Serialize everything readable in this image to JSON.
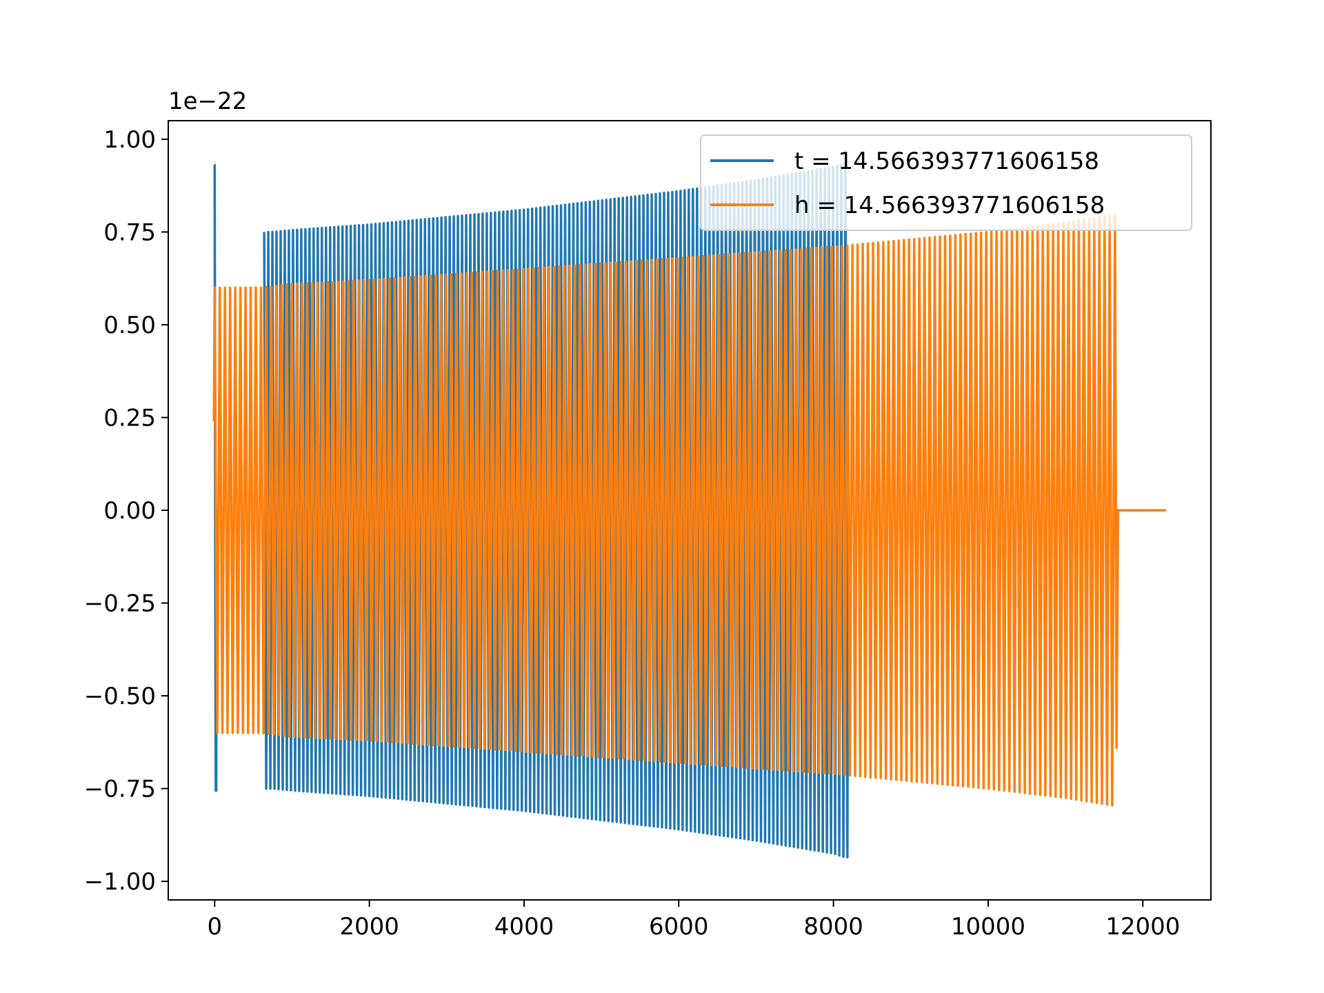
{
  "chart_data": {
    "type": "line",
    "title": "",
    "xlabel": "",
    "ylabel": "",
    "y_offset_text": "1e−22",
    "xlim": [
      -600,
      12880
    ],
    "ylim": [
      -1.05,
      1.05
    ],
    "x_ticks": [
      0,
      2000,
      4000,
      6000,
      8000,
      10000,
      12000
    ],
    "x_tick_labels": [
      "0",
      "2000",
      "4000",
      "6000",
      "8000",
      "10000",
      "12000"
    ],
    "y_ticks": [
      1.0,
      0.75,
      0.5,
      0.25,
      0.0,
      -0.25,
      -0.5,
      -0.75,
      -1.0
    ],
    "y_tick_labels": [
      "1.00",
      "0.75",
      "0.50",
      "0.25",
      "0.00",
      "−0.25",
      "−0.50",
      "−0.75",
      "−1.00"
    ],
    "grid": false,
    "legend_position": "top-right",
    "series": [
      {
        "name": "t = 14.566393771606158",
        "color": "#1f77b4",
        "x": [
          -10,
          0,
          10,
          20,
          30,
          640,
          700,
          760,
          1000,
          2000,
          3000,
          4000,
          5000,
          6000,
          7000,
          8000,
          8150,
          8180,
          8200
        ],
        "y": [
          0.93,
          0.93,
          -0.2,
          -0.75,
          0.0,
          0.75,
          -0.75,
          0.75,
          0.755,
          0.77,
          0.79,
          0.81,
          0.835,
          0.86,
          0.89,
          0.925,
          0.935,
          -0.935,
          0.0
        ],
        "note_envelope": "dense oscillation between +y and -y amplitude"
      },
      {
        "name": "h = 14.566393771606158",
        "color": "#ff7f0e",
        "x": [
          -10,
          0,
          600,
          1000,
          2000,
          3000,
          4000,
          5000,
          6000,
          7000,
          8000,
          9000,
          10000,
          11000,
          11600,
          11650,
          11700,
          12300
        ],
        "y": [
          0.24,
          0.6,
          0.6,
          0.61,
          0.62,
          0.635,
          0.65,
          0.665,
          0.68,
          0.695,
          0.71,
          0.73,
          0.75,
          0.775,
          0.795,
          -0.64,
          0.0,
          0.0
        ],
        "note_envelope": "dense oscillation between +y and -y amplitude"
      }
    ]
  }
}
